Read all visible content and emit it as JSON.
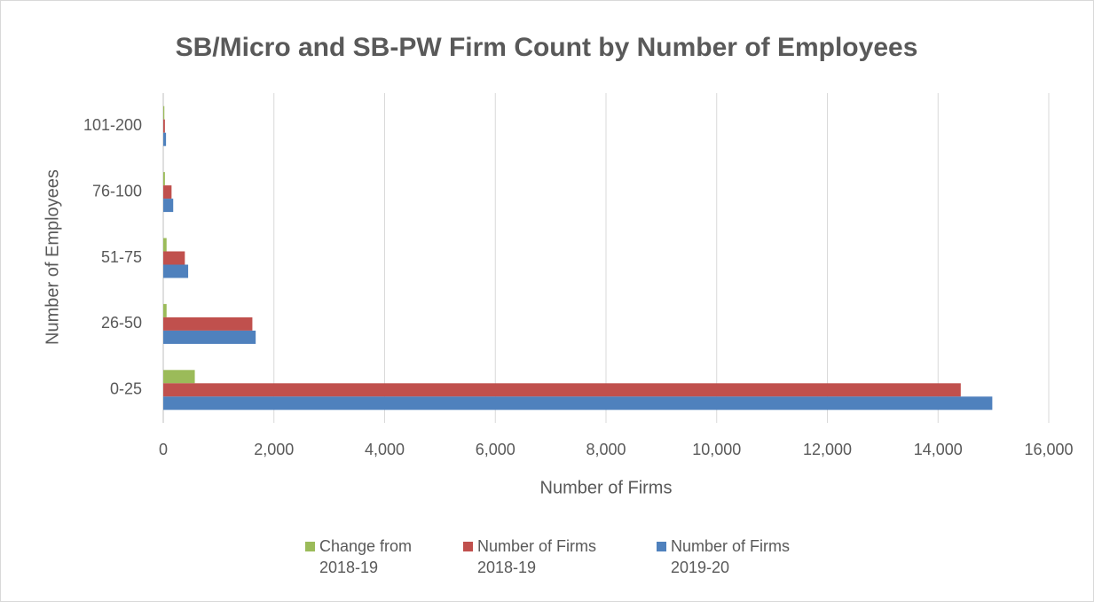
{
  "chart_data": {
    "type": "bar",
    "orientation": "horizontal",
    "title": "SB/Micro and SB-PW Firm Count by Number of Employees",
    "x_label": "Number of Firms",
    "y_label": "Number of Employees",
    "categories": [
      "0-25",
      "26-50",
      "51-75",
      "76-100",
      "101-200"
    ],
    "series": [
      {
        "name": "Change from 2018-19",
        "color": "#9bbb59",
        "values": [
          570,
          60,
          60,
          30,
          20
        ]
      },
      {
        "name": "Number of Firms 2018-19",
        "color": "#c0504d",
        "values": [
          14410,
          1610,
          390,
          150,
          30
        ]
      },
      {
        "name": "Number of Firms 2019-20",
        "color": "#4f81bd",
        "values": [
          14980,
          1670,
          450,
          180,
          50
        ]
      }
    ],
    "xlim": [
      0,
      16000
    ],
    "xticks": [
      0,
      {
        "value": 2000,
        "label": "2,000"
      },
      {
        "value": 4000,
        "label": "4,000"
      },
      {
        "value": 6000,
        "label": "6,000"
      },
      {
        "value": 8000,
        "label": "8,000"
      },
      {
        "value": 10000,
        "label": "10,000"
      },
      {
        "value": 12000,
        "label": "12,000"
      },
      {
        "value": 14000,
        "label": "14,000"
      },
      {
        "value": 16000,
        "label": "16,000"
      }
    ],
    "grid": true,
    "legend": "bottom"
  }
}
